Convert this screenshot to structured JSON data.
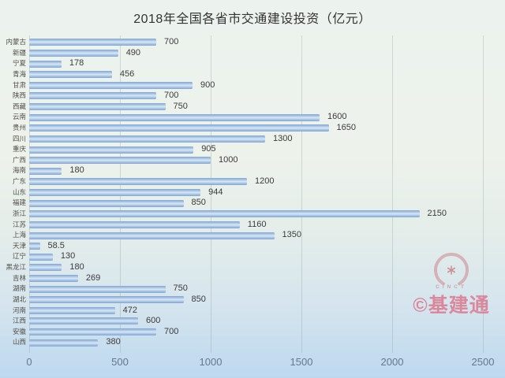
{
  "watermark": {
    "logo_text": "CINCT",
    "credit": "©基建通"
  },
  "colors": {
    "bar": "#8fb3de",
    "grid": "#9aa89e",
    "axis_text": "#66798c",
    "value_text": "#3b3b3b",
    "watermark_pink": "#dc7389",
    "background_top": "#ecf3ee",
    "background_bottom": "#bdd9f0"
  },
  "chart_data": {
    "type": "bar",
    "orientation": "horizontal",
    "title": "2018年全国各省市交通建设投资（亿元）",
    "xlabel": "",
    "ylabel": "",
    "categories": [
      "内蒙古",
      "新疆",
      "宁夏",
      "青海",
      "甘肃",
      "陕西",
      "西藏",
      "云南",
      "贵州",
      "四川",
      "重庆",
      "广西",
      "海南",
      "广东",
      "山东",
      "福建",
      "浙江",
      "江苏",
      "上海",
      "天津",
      "辽宁",
      "黑龙江",
      "吉林",
      "湖南",
      "湖北",
      "河南",
      "江西",
      "安徽",
      "山西"
    ],
    "values": [
      700,
      490,
      178,
      456,
      900,
      700,
      750,
      1600,
      1650,
      1300,
      905,
      1000,
      180,
      1200,
      944,
      850,
      2150,
      1160,
      1350,
      58.5,
      130,
      180,
      269,
      750,
      850,
      472,
      600,
      700,
      380
    ],
    "value_labels": [
      "700",
      "490",
      "178",
      "456",
      "900",
      "700",
      "750",
      "1600",
      "1650",
      "1300",
      "905",
      "1000",
      "180",
      "1200",
      "944",
      "850",
      "2150",
      "1160",
      "1350",
      "58.5",
      "130",
      "180",
      "269",
      "750",
      "850",
      "472",
      "600",
      "700",
      "380"
    ],
    "x_ticks": [
      0,
      500,
      1000,
      1500,
      2000,
      2500
    ],
    "xlim": [
      0,
      2500
    ],
    "grid": true,
    "legend": false
  }
}
